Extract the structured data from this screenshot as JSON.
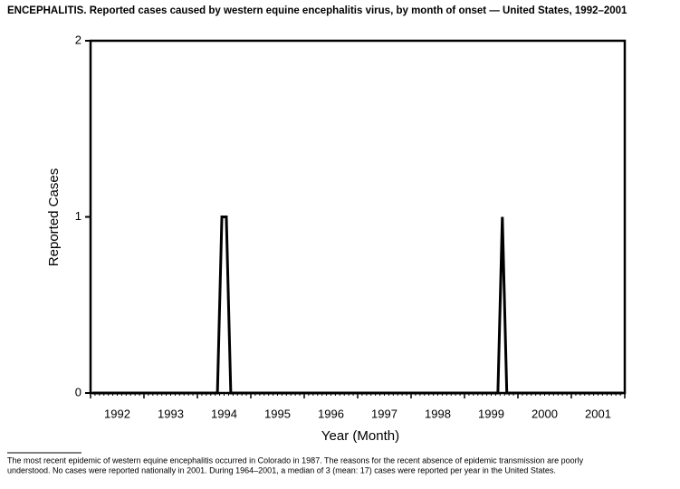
{
  "chart_data": {
    "type": "line",
    "title": "ENCEPHALITIS. Reported cases caused by western equine encephalitis virus, by month of onset — United States, 1992–2001",
    "y_label": "Reported Cases",
    "x_label": "Year (Month)",
    "year_labels": [
      "1992",
      "1993",
      "1994",
      "1995",
      "1996",
      "1997",
      "1998",
      "1999",
      "2000",
      "2001"
    ],
    "categories": [
      null,
      null,
      null,
      null,
      null,
      null,
      null,
      null,
      null,
      null,
      null,
      null,
      null,
      null,
      null,
      null,
      null,
      null,
      null,
      null,
      null,
      null,
      null,
      null,
      null,
      null,
      null,
      null,
      null,
      null,
      null,
      null,
      null,
      null,
      null,
      null,
      null,
      null,
      null,
      null,
      null,
      null,
      null,
      null,
      null,
      null,
      null,
      null,
      null,
      null,
      null,
      null,
      null,
      null,
      null,
      null,
      null,
      null,
      null,
      null,
      null,
      null,
      null,
      null,
      null,
      null,
      null,
      null,
      null,
      null,
      null,
      null,
      null,
      null,
      null,
      null,
      null,
      null,
      null,
      null,
      null,
      null,
      null,
      null,
      null,
      null,
      null,
      null,
      null,
      null,
      null,
      null,
      null,
      null,
      null,
      null,
      null,
      null,
      null,
      null,
      null,
      null,
      null,
      null,
      null,
      null,
      null,
      null,
      null,
      null,
      null,
      null,
      null,
      null,
      null,
      null,
      null,
      null,
      null,
      null
    ],
    "values": [
      0,
      0,
      0,
      0,
      0,
      0,
      0,
      0,
      0,
      0,
      0,
      0,
      0,
      0,
      0,
      0,
      0,
      0,
      0,
      0,
      0,
      0,
      0,
      0,
      0,
      0,
      0,
      0,
      0,
      1,
      1,
      0,
      0,
      0,
      0,
      0,
      0,
      0,
      0,
      0,
      0,
      0,
      0,
      0,
      0,
      0,
      0,
      0,
      0,
      0,
      0,
      0,
      0,
      0,
      0,
      0,
      0,
      0,
      0,
      0,
      0,
      0,
      0,
      0,
      0,
      0,
      0,
      0,
      0,
      0,
      0,
      0,
      0,
      0,
      0,
      0,
      0,
      0,
      0,
      0,
      0,
      0,
      0,
      0,
      0,
      0,
      0,
      0,
      0,
      0,
      0,
      0,
      1,
      0,
      0,
      0,
      0,
      0,
      0,
      0,
      0,
      0,
      0,
      0,
      0,
      0,
      0,
      0,
      0,
      0,
      0,
      0,
      0,
      0,
      0,
      0,
      0,
      0,
      0,
      0
    ],
    "color": "#000000",
    "ylim": [
      0,
      2
    ],
    "yticks": [
      0,
      1,
      2
    ],
    "footnote": [
      "The most recent epidemic of western equine encephalitis occurred in Colorado in 1987. The reasons for the recent absence of epidemic transmission are poorly",
      "understood. No cases were reported nationally in 2001. During 1964–2001, a median of 3 (mean: 17) cases were reported per year in the United States."
    ]
  }
}
